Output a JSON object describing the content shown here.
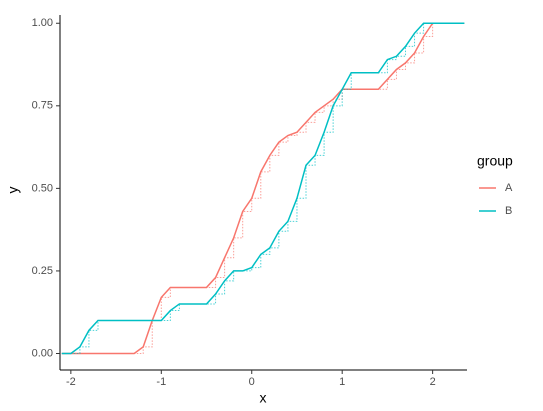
{
  "chart_data": {
    "type": "line",
    "x_label": "x",
    "y_label": "y",
    "legend_title": "group",
    "legend_position": "right",
    "xlim": [
      -2.12,
      2.38
    ],
    "xticks": [
      -2,
      -1,
      0,
      1,
      2
    ],
    "ylim": [
      -0.05,
      1.025
    ],
    "yticks": [
      {
        "value": 0,
        "label": "0.00"
      },
      {
        "value": 0.25,
        "label": "0.25"
      },
      {
        "value": 0.5,
        "label": "0.50"
      },
      {
        "value": 0.75,
        "label": "0.75"
      },
      {
        "value": 1,
        "label": "1.00"
      }
    ],
    "series": [
      {
        "name": "A",
        "color": "#F8766D",
        "x": [
          -2.1,
          -1.3,
          -1.2,
          -1.1,
          -1.0,
          -0.9,
          -0.8,
          -0.5,
          -0.4,
          -0.3,
          -0.2,
          -0.1,
          0,
          0.1,
          0.2,
          0.3,
          0.4,
          0.5,
          0.6,
          0.7,
          0.8,
          0.9,
          1.0,
          1.4,
          1.5,
          1.6,
          1.7,
          1.8,
          1.9,
          2.0,
          2.35
        ],
        "values": [
          0,
          0,
          0.02,
          0.1,
          0.17,
          0.2,
          0.2,
          0.2,
          0.23,
          0.29,
          0.35,
          0.43,
          0.47,
          0.55,
          0.6,
          0.64,
          0.66,
          0.67,
          0.7,
          0.73,
          0.75,
          0.77,
          0.8,
          0.8,
          0.83,
          0.86,
          0.88,
          0.91,
          0.96,
          1,
          1
        ]
      },
      {
        "name": "B",
        "color": "#00BFC4",
        "x": [
          -2.1,
          -2.0,
          -1.9,
          -1.8,
          -1.7,
          -1.0,
          -0.9,
          -0.8,
          -0.5,
          -0.4,
          -0.3,
          -0.2,
          -0.1,
          0,
          0.1,
          0.2,
          0.3,
          0.4,
          0.5,
          0.6,
          0.7,
          0.8,
          0.9,
          1.0,
          1.1,
          1.4,
          1.5,
          1.6,
          1.7,
          1.8,
          1.9,
          2.35
        ],
        "values": [
          0,
          0,
          0.02,
          0.07,
          0.1,
          0.1,
          0.13,
          0.15,
          0.15,
          0.18,
          0.22,
          0.25,
          0.25,
          0.26,
          0.3,
          0.32,
          0.37,
          0.4,
          0.47,
          0.57,
          0.6,
          0.67,
          0.75,
          0.8,
          0.85,
          0.85,
          0.89,
          0.9,
          0.93,
          0.97,
          1,
          1
        ]
      }
    ]
  }
}
